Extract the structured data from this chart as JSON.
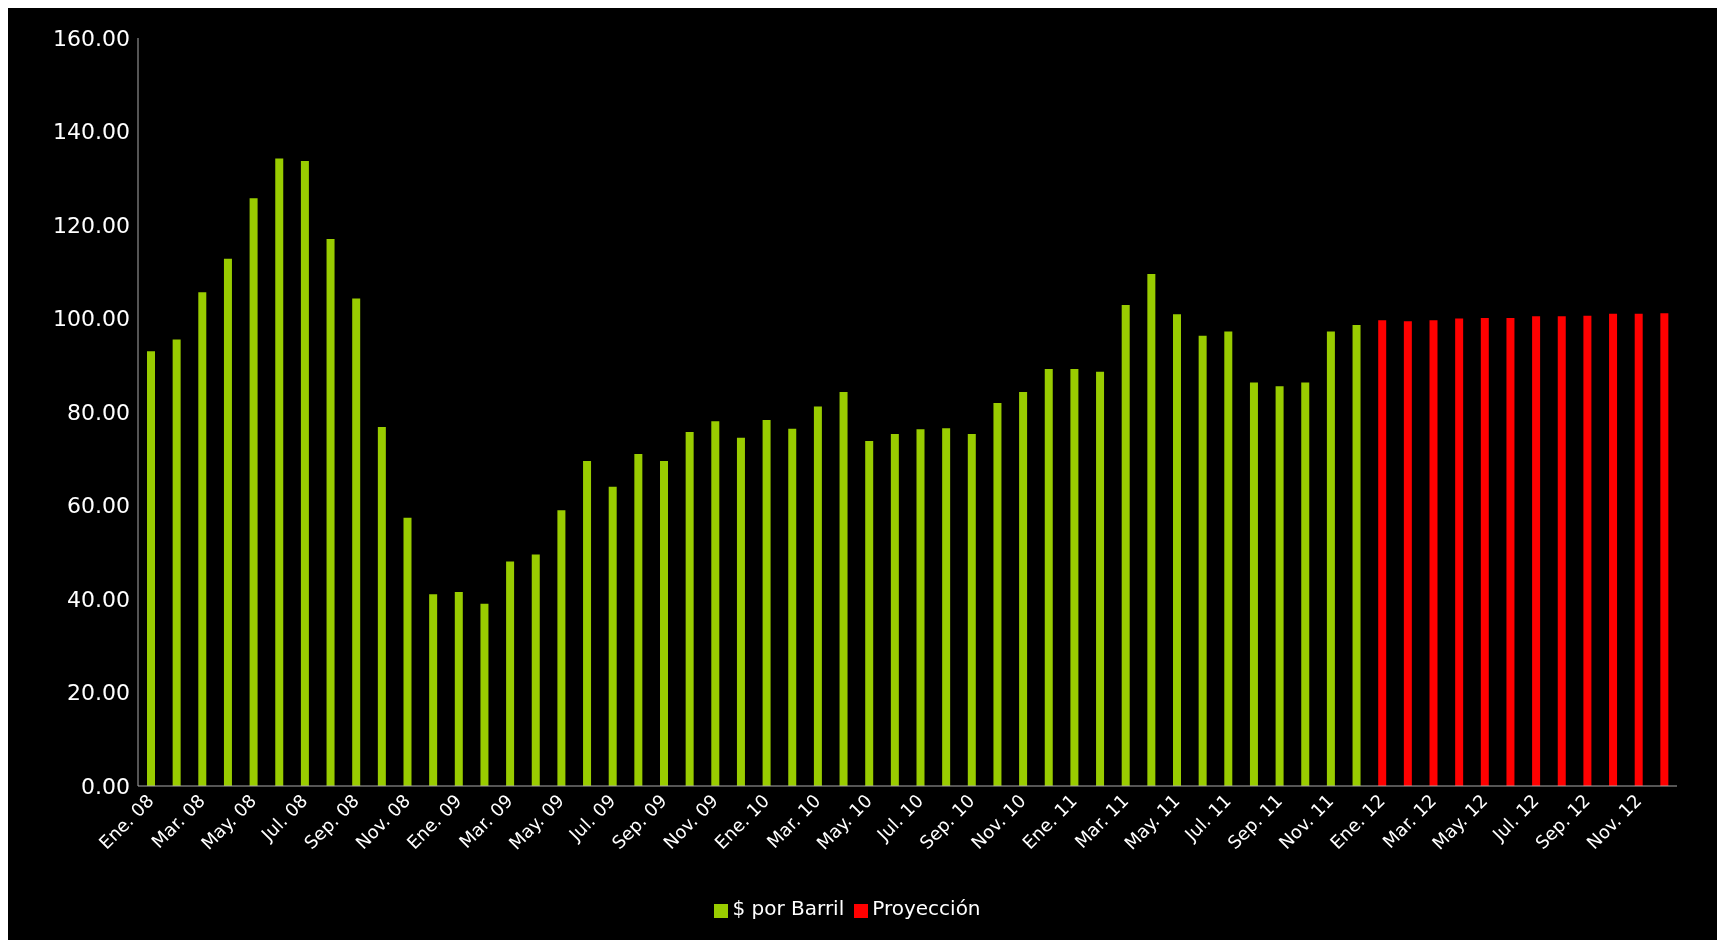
{
  "chart_data": {
    "type": "bar",
    "stacked": true,
    "categories": [
      "Ene. 08",
      null,
      "Mar. 08",
      null,
      "May. 08",
      null,
      "Jul. 08",
      null,
      "Sep. 08",
      null,
      "Nov. 08",
      null,
      "Ene. 09",
      null,
      "Mar. 09",
      null,
      "May. 09",
      null,
      "Jul. 09",
      null,
      "Sep. 09",
      null,
      "Nov. 09",
      null,
      "Ene. 10",
      null,
      "Mar. 10",
      null,
      "May. 10",
      null,
      "Jul. 10",
      null,
      "Sep. 10",
      null,
      "Nov. 10",
      null,
      "Ene. 11",
      null,
      "Mar. 11",
      null,
      "May. 11",
      null,
      "Jul. 11",
      null,
      "Sep. 11",
      null,
      "Nov. 11",
      null,
      "Ene. 12",
      null,
      "Mar. 12",
      null,
      "May. 12",
      null,
      "Jul. 12",
      null,
      "Sep. 12",
      null,
      "Nov. 12",
      null
    ],
    "series": [
      {
        "name": "$ por Barril",
        "color": "#99cc00",
        "values": [
          93,
          95.5,
          105.6,
          112.8,
          125.7,
          134.2,
          133.7,
          117,
          104.3,
          76.8,
          57.4,
          41,
          41.5,
          39,
          48,
          49.5,
          59,
          69.5,
          64,
          71,
          69.5,
          75.7,
          78,
          74.5,
          78.3,
          76.4,
          81.2,
          84.3,
          73.8,
          75.3,
          76.3,
          76.5,
          75.3,
          81.9,
          84.3,
          89.2,
          89.2,
          88.6,
          102.9,
          109.5,
          100.9,
          96.3,
          97.2,
          86.3,
          85.5,
          86.3,
          97.2,
          98.6,
          null,
          null,
          null,
          null,
          null,
          null,
          null,
          null,
          null,
          null,
          null,
          null
        ]
      },
      {
        "name": "Proyección",
        "color": "#ff0000",
        "values": [
          null,
          null,
          null,
          null,
          null,
          null,
          null,
          null,
          null,
          null,
          null,
          null,
          null,
          null,
          null,
          null,
          null,
          null,
          null,
          null,
          null,
          null,
          null,
          null,
          null,
          null,
          null,
          null,
          null,
          null,
          null,
          null,
          null,
          null,
          null,
          null,
          null,
          null,
          null,
          null,
          null,
          null,
          null,
          null,
          null,
          null,
          null,
          null,
          99.6,
          99.4,
          99.6,
          100,
          100.1,
          100.1,
          100.5,
          100.5,
          100.6,
          101,
          101,
          101.1
        ]
      }
    ],
    "ylim": [
      0,
      160
    ],
    "yticks": [
      {
        "value": 0,
        "label": "0.00"
      },
      {
        "value": 20,
        "label": "20.00"
      },
      {
        "value": 40,
        "label": "40.00"
      },
      {
        "value": 60,
        "label": "60.00"
      },
      {
        "value": 80,
        "label": "80.00"
      },
      {
        "value": 100,
        "label": "100.00"
      },
      {
        "value": 120,
        "label": "120.00"
      },
      {
        "value": 140,
        "label": "140.00"
      },
      {
        "value": 160,
        "label": "160.00"
      }
    ],
    "grid": false,
    "legend": "bottom"
  }
}
